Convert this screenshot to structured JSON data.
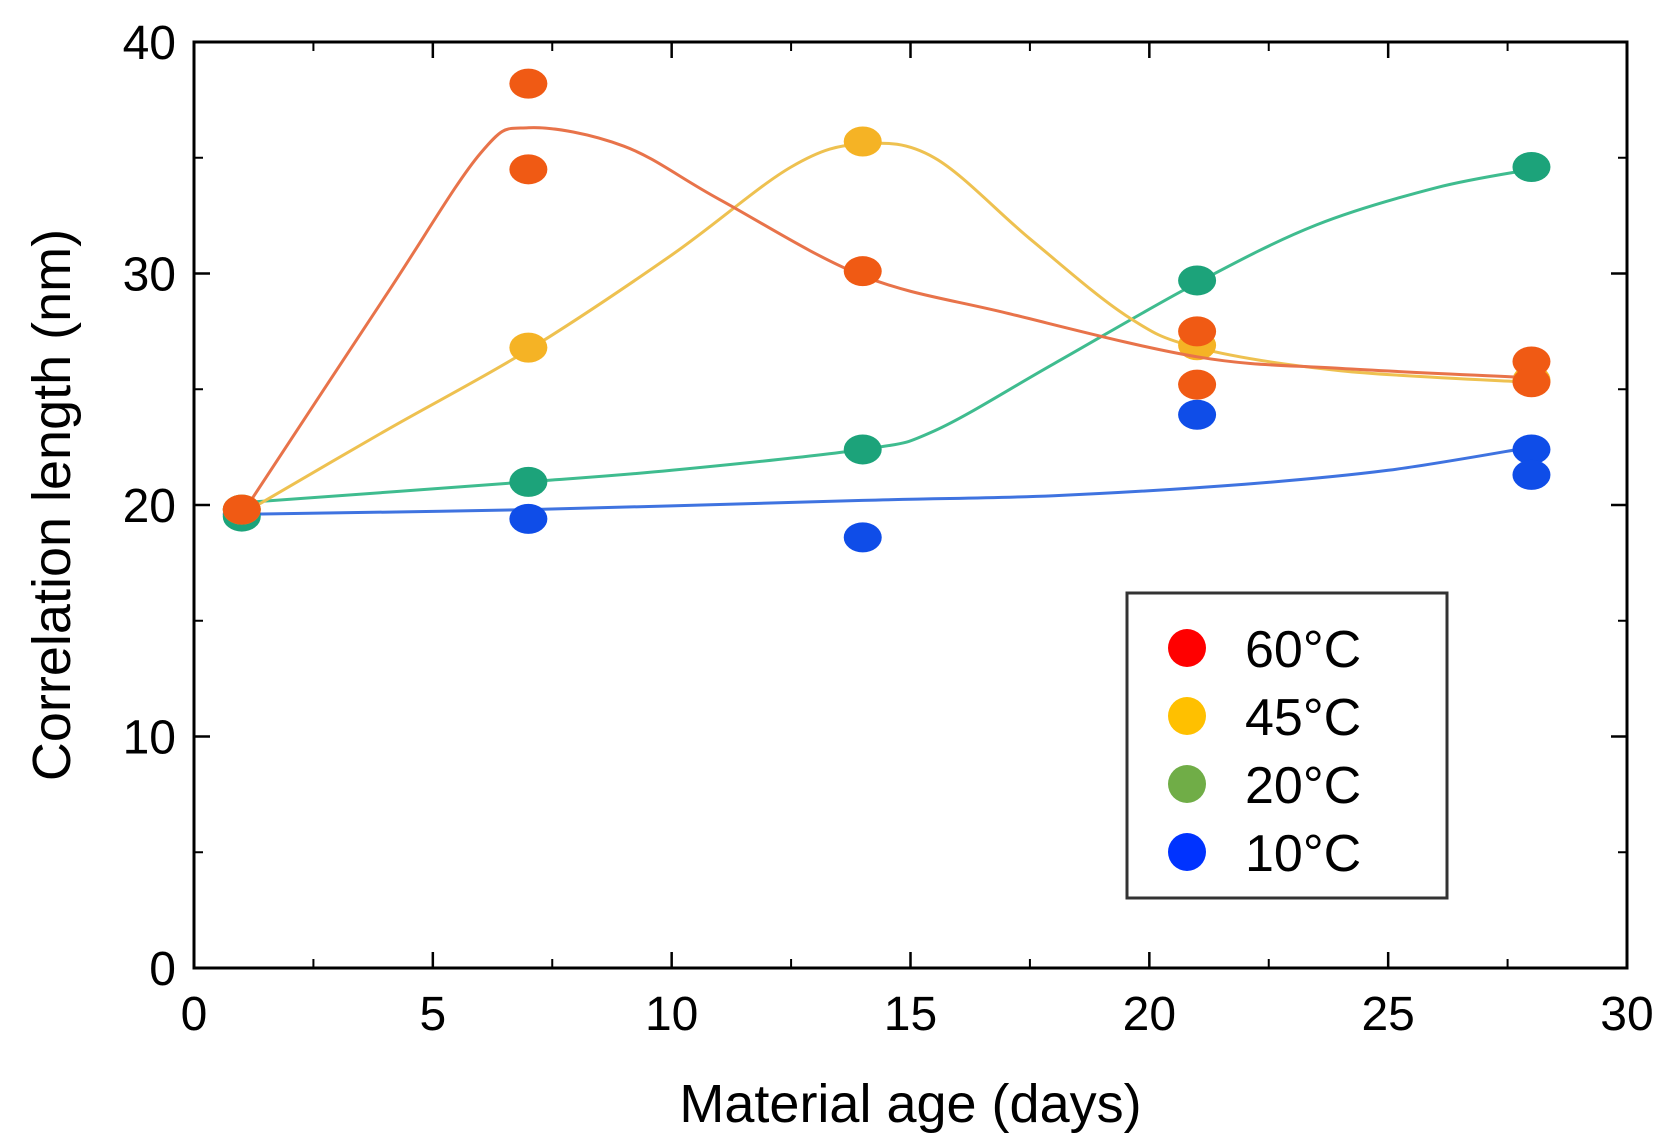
{
  "chart_data": {
    "type": "scatter",
    "title": "",
    "xlabel": "Material age (days)",
    "ylabel": "Correlation length (nm)",
    "xlim": [
      0,
      30
    ],
    "ylim": [
      0,
      40
    ],
    "xticks": [
      0,
      5,
      10,
      15,
      20,
      25,
      30
    ],
    "yticks": [
      0,
      10,
      20,
      30,
      40
    ],
    "grid": false,
    "legend_position": "lower-right",
    "series": [
      {
        "name": "60°C",
        "legend_color": "#ff0000",
        "color": "#f05a14",
        "line_color": "#e8734a",
        "points": [
          [
            1,
            19.8
          ],
          [
            7,
            38.2
          ],
          [
            7,
            34.5
          ],
          [
            14,
            30.1
          ],
          [
            21,
            27.5
          ],
          [
            21,
            25.2
          ],
          [
            28,
            26.2
          ],
          [
            28,
            25.3
          ]
        ],
        "curve": [
          [
            1,
            19.6
          ],
          [
            4,
            29
          ],
          [
            6,
            35.2
          ],
          [
            7,
            36.3
          ],
          [
            9,
            35.5
          ],
          [
            11,
            33.2
          ],
          [
            14,
            29.9
          ],
          [
            17,
            28.3
          ],
          [
            21,
            26.4
          ],
          [
            24,
            25.9
          ],
          [
            28,
            25.5
          ]
        ]
      },
      {
        "name": "45°C",
        "legend_color": "#ffc000",
        "color": "#f5b325",
        "line_color": "#eec150",
        "points": [
          [
            1,
            19.8
          ],
          [
            7,
            26.8
          ],
          [
            14,
            35.7
          ],
          [
            21,
            26.9
          ],
          [
            28,
            25.4
          ]
        ],
        "curve": [
          [
            1,
            19.6
          ],
          [
            4,
            23.2
          ],
          [
            7,
            26.7
          ],
          [
            10,
            30.8
          ],
          [
            12.5,
            34.6
          ],
          [
            14,
            35.6
          ],
          [
            15.5,
            35
          ],
          [
            17.5,
            31.5
          ],
          [
            19.5,
            28.2
          ],
          [
            21,
            26.8
          ],
          [
            24,
            25.8
          ],
          [
            28,
            25.3
          ]
        ]
      },
      {
        "name": "20°C",
        "legend_color": "#70ad47",
        "color": "#1ca37a",
        "line_color": "#3fbc8f",
        "points": [
          [
            1,
            19.8
          ],
          [
            1,
            19.5
          ],
          [
            7,
            21.0
          ],
          [
            14,
            22.4
          ],
          [
            21,
            29.7
          ],
          [
            28,
            34.6
          ]
        ],
        "curve": [
          [
            1,
            20.1
          ],
          [
            7,
            21.0
          ],
          [
            10,
            21.5
          ],
          [
            14,
            22.4
          ],
          [
            15.5,
            23.2
          ],
          [
            18,
            26.1
          ],
          [
            21,
            29.6
          ],
          [
            23.5,
            32.1
          ],
          [
            26,
            33.7
          ],
          [
            28,
            34.5
          ]
        ]
      },
      {
        "name": "10°C",
        "legend_color": "#0033ff",
        "color": "#0f4de8",
        "line_color": "#3f73e0",
        "points": [
          [
            1,
            19.6
          ],
          [
            7,
            19.4
          ],
          [
            14,
            18.6
          ],
          [
            21,
            23.9
          ],
          [
            28,
            22.4
          ],
          [
            28,
            21.3
          ]
        ],
        "curve": [
          [
            1,
            19.6
          ],
          [
            7,
            19.8
          ],
          [
            14,
            20.2
          ],
          [
            18,
            20.4
          ],
          [
            22,
            20.9
          ],
          [
            25,
            21.5
          ],
          [
            28,
            22.5
          ]
        ]
      }
    ]
  }
}
